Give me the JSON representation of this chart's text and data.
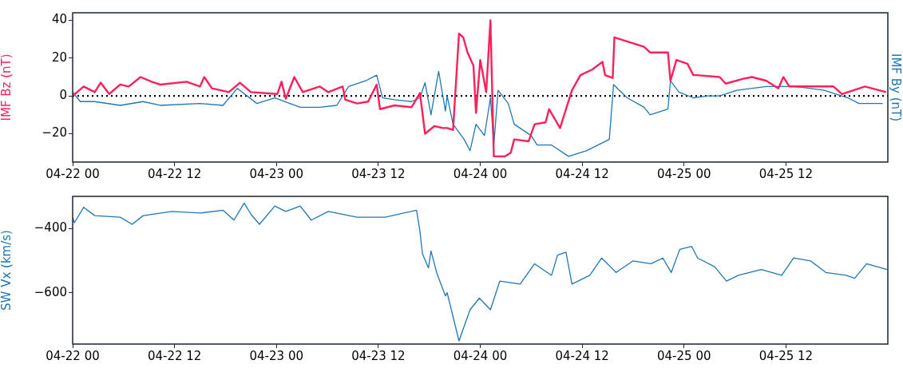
{
  "chart_data": [
    {
      "type": "line",
      "ylabel": "IMF Bz (nT)",
      "y2label": "IMF By (nT)",
      "xlim": [
        "--04-22T00:00",
        "--04-26T00:00"
      ],
      "xticks": [
        {
          "value": "--04-22T00:00",
          "label": "04-22 00"
        },
        {
          "value": "--04-22T12:00",
          "label": "04-22 12"
        },
        {
          "value": "--04-23T00:00",
          "label": "04-23 00"
        },
        {
          "value": "--04-23T12:00",
          "label": "04-23 12"
        },
        {
          "value": "--04-24T00:00",
          "label": "04-24 00"
        },
        {
          "value": "--04-24T12:00",
          "label": "04-24 12"
        },
        {
          "value": "--04-25T00:00",
          "label": "04-25 00"
        },
        {
          "value": "--04-25T12:00",
          "label": "04-25 12"
        }
      ],
      "ylim": [
        -35,
        44
      ],
      "yticks": [
        -20,
        0,
        20,
        40
      ],
      "grid": false,
      "legend": false,
      "marker": "none",
      "line_style": "solid",
      "ref_lines": [
        {
          "axis": "y",
          "value": 0,
          "color": "#000000",
          "line_style": "dotted"
        }
      ],
      "series": [
        {
          "color": "#ff1f5b",
          "x": [
            "--04-22T00:00",
            "--04-22T01:18",
            "--04-22T02:36",
            "--04-22T03:18",
            "--04-22T04:18",
            "--04-22T05:36",
            "--04-22T06:36",
            "--04-22T08:00",
            "--04-22T09:18",
            "--04-22T10:18",
            "--04-22T13:24",
            "--04-22T15:00",
            "--04-22T15:30",
            "--04-22T16:24",
            "--04-22T18:24",
            "--04-22T19:42",
            "--04-22T21:00",
            "--04-23T00:06",
            "--04-23T00:36",
            "--04-23T01:06",
            "--04-23T02:06",
            "--04-23T03:06",
            "--04-23T05:06",
            "--04-23T06:06",
            "--04-23T07:48",
            "--04-23T08:06",
            "--04-23T09:30",
            "--04-23T10:48",
            "--04-23T11:48",
            "--04-23T12:12",
            "--04-23T13:54",
            "--04-23T15:54",
            "--04-23T16:54",
            "--04-23T17:30",
            "--04-23T18:36",
            "--04-23T19:36",
            "--04-23T20:06",
            "--04-23T20:48",
            "--04-23T21:30",
            "--04-23T22:00",
            "--04-23T22:30",
            "--04-23T23:12",
            "--04-23T23:30",
            "--04-24T00:00",
            "--04-24T00:42",
            "--04-24T01:12",
            "--04-24T01:36",
            "--04-24T02:54",
            "--04-24T03:36",
            "--04-24T04:00",
            "--04-24T05:42",
            "--04-24T06:24",
            "--04-24T07:42",
            "--04-24T08:06",
            "--04-24T09:24",
            "--04-24T10:48",
            "--04-24T11:48",
            "--04-24T13:12",
            "--04-24T14:24",
            "--04-24T14:42",
            "--04-24T15:36",
            "--04-24T15:48",
            "--04-24T19:18",
            "--04-24T20:00",
            "--04-24T22:06",
            "--04-24T22:24",
            "--04-24T23:06",
            "--04-25T00:24",
            "--04-25T01:06",
            "--04-25T01:30",
            "--04-25T04:12",
            "--04-25T04:54",
            "--04-25T06:54",
            "--04-25T08:00",
            "--04-25T09:42",
            "--04-25T11:06",
            "--04-25T11:42",
            "--04-25T12:24",
            "--04-25T14:48",
            "--04-25T17:36",
            "--04-25T18:36",
            "--04-25T21:18",
            "--04-25T23:48"
          ],
          "values": [
            0,
            5,
            2,
            7,
            1,
            6,
            5,
            10,
            7.5,
            6,
            7.5,
            5,
            10,
            4,
            2,
            7,
            2,
            1,
            7.5,
            -1.5,
            10,
            2,
            5,
            2,
            5,
            -2,
            -4,
            -3,
            6,
            -7,
            -5,
            -6,
            1.5,
            -20,
            -16,
            -17,
            -17,
            -18,
            33,
            31,
            23,
            16,
            -9,
            19,
            2,
            40,
            -32,
            -32,
            -30,
            -23,
            -24,
            -15,
            -14,
            -7,
            -17,
            3,
            11,
            14,
            18,
            11,
            9.5,
            31,
            26,
            23,
            23,
            8,
            19,
            17,
            11,
            11,
            10,
            6.5,
            9,
            10,
            8,
            4,
            10,
            5,
            5,
            5,
            1,
            5,
            2
          ]
        },
        {
          "color": "#1f77b4",
          "x": [
            "--04-22T00:00",
            "--04-22T00:54",
            "--04-22T02:36",
            "--04-22T05:36",
            "--04-22T08:18",
            "--04-22T10:18",
            "--04-22T15:00",
            "--04-22T17:42",
            "--04-22T19:24",
            "--04-22T21:42",
            "--04-22T23:48",
            "--04-23T02:48",
            "--04-23T05:06",
            "--04-23T07:06",
            "--04-23T08:30",
            "--04-23T10:30",
            "--04-23T11:48",
            "--04-23T12:30",
            "--04-23T13:54",
            "--04-23T15:54",
            "--04-23T16:54",
            "--04-23T17:30",
            "--04-23T18:12",
            "--04-23T19:06",
            "--04-23T19:54",
            "--04-23T20:06",
            "--04-23T20:48",
            "--04-23T22:06",
            "--04-23T22:48",
            "--04-23T23:30",
            "--04-24T00:30",
            "--04-24T01:12",
            "--04-24T01:36",
            "--04-24T02:06",
            "--04-24T03:18",
            "--04-24T04:00",
            "--04-24T06:00",
            "--04-24T06:42",
            "--04-24T08:24",
            "--04-24T10:24",
            "--04-24T12:30",
            "--04-24T15:12",
            "--04-24T15:42",
            "--04-24T17:18",
            "--04-24T19:18",
            "--04-24T20:00",
            "--04-24T22:06",
            "--04-24T22:24",
            "--04-24T23:24",
            "--04-25T01:06",
            "--04-25T02:48",
            "--04-25T04:12",
            "--04-25T06:12",
            "--04-25T09:42",
            "--04-25T13:06",
            "--04-25T16:30",
            "--04-25T19:18",
            "--04-25T20:36",
            "--04-25T23:24"
          ],
          "values": [
            2,
            -3,
            -3,
            -5,
            -3,
            -5,
            -4,
            -5,
            4,
            -4,
            -1,
            -6,
            -6,
            -5,
            5,
            8,
            11,
            -1,
            -2,
            -3,
            -1,
            7,
            -10,
            13,
            -8,
            0,
            -15,
            -23,
            -29,
            -15,
            -21,
            -1,
            -26,
            3,
            -4,
            -15,
            -21,
            -26,
            -26,
            -32,
            -29,
            -23,
            6,
            -1,
            -6,
            -10,
            -7,
            8,
            2,
            -1,
            0,
            0,
            3,
            5,
            5,
            3,
            -1,
            -4,
            -4
          ]
        }
      ]
    },
    {
      "type": "line",
      "ylabel": "SW Vx (km/s)",
      "xlim": [
        "--04-22T00:00",
        "--04-26T00:00"
      ],
      "xticks": [
        {
          "value": "--04-22T00:00",
          "label": "04-22 00"
        },
        {
          "value": "--04-22T12:00",
          "label": "04-22 12"
        },
        {
          "value": "--04-23T00:00",
          "label": "04-23 00"
        },
        {
          "value": "--04-23T12:00",
          "label": "04-23 12"
        },
        {
          "value": "--04-24T00:00",
          "label": "04-24 00"
        },
        {
          "value": "--04-24T12:00",
          "label": "04-24 12"
        },
        {
          "value": "--04-25T00:00",
          "label": "04-25 00"
        },
        {
          "value": "--04-25T12:00",
          "label": "04-25 12"
        }
      ],
      "ylim": [
        -760,
        -300
      ],
      "yticks": [
        -600,
        -400
      ],
      "grid": false,
      "legend": false,
      "marker": "none",
      "line_style": "solid",
      "series": [
        {
          "color": "#1f77b4",
          "x": [
            "--04-22T00:00",
            "--04-22T00:12",
            "--04-22T01:18",
            "--04-22T02:36",
            "--04-22T05:36",
            "--04-22T07:00",
            "--04-22T08:18",
            "--04-22T11:42",
            "--04-22T15:00",
            "--04-22T17:42",
            "--04-22T19:00",
            "--04-22T20:12",
            "--04-22T21:00",
            "--04-22T22:00",
            "--04-22T23:48",
            "--04-23T01:06",
            "--04-23T02:48",
            "--04-23T04:06",
            "--04-23T06:06",
            "--04-23T09:30",
            "--04-23T12:48",
            "--04-23T16:30",
            "--04-23T16:54",
            "--04-23T17:12",
            "--04-23T17:54",
            "--04-23T18:12",
            "--04-23T18:54",
            "--04-23T19:54",
            "--04-23T20:06",
            "--04-23T21:30",
            "--04-23T22:48",
            "--04-23T23:54",
            "--04-24T01:12",
            "--04-24T02:18",
            "--04-24T04:42",
            "--04-24T06:24",
            "--04-24T08:24",
            "--04-24T09:06",
            "--04-24T10:06",
            "--04-24T10:48",
            "--04-24T12:54",
            "--04-24T14:18",
            "--04-24T16:00",
            "--04-24T18:00",
            "--04-24T20:06",
            "--04-24T21:30",
            "--04-24T22:30",
            "--04-24T23:30",
            "--04-25T00:54",
            "--04-25T01:36",
            "--04-25T03:36",
            "--04-25T05:00",
            "--04-25T06:24",
            "--04-25T09:06",
            "--04-25T11:30",
            "--04-25T12:54",
            "--04-25T14:54",
            "--04-25T16:42",
            "--04-25T19:06",
            "--04-25T20:06",
            "--04-25T21:30",
            "--04-25T23:54"
          ],
          "values": [
            -365,
            -382,
            -334,
            -360,
            -365,
            -387,
            -360,
            -347,
            -352,
            -343,
            -374,
            -321,
            -356,
            -387,
            -330,
            -347,
            -330,
            -374,
            -347,
            -365,
            -365,
            -343,
            -409,
            -479,
            -523,
            -470,
            -540,
            -610,
            -600,
            -750,
            -653,
            -617,
            -653,
            -564,
            -573,
            -510,
            -546,
            -483,
            -474,
            -573,
            -546,
            -492,
            -537,
            -501,
            -510,
            -492,
            -537,
            -465,
            -456,
            -492,
            -519,
            -564,
            -546,
            -528,
            -546,
            -492,
            -501,
            -537,
            -546,
            -555,
            -510,
            -528
          ]
        }
      ]
    }
  ]
}
